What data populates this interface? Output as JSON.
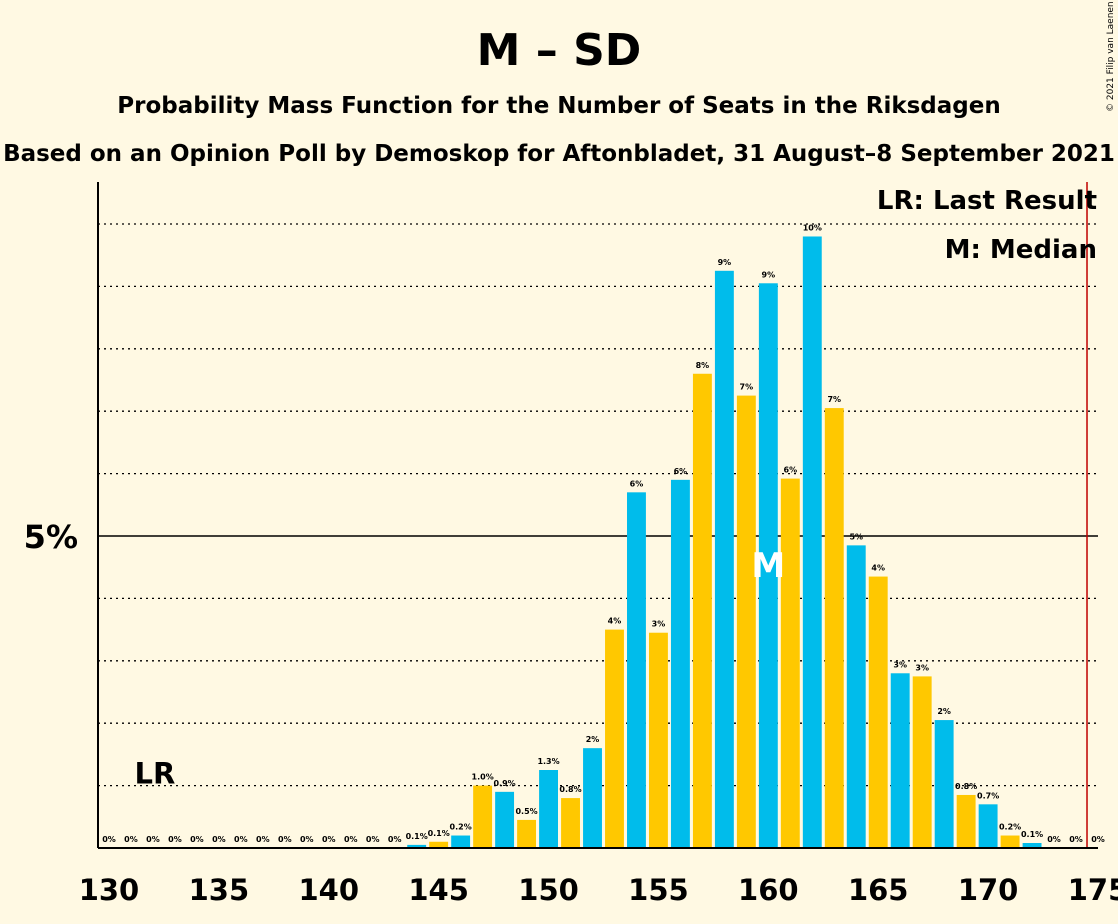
{
  "title": "M – SD",
  "subtitle": "Probability Mass Function for the Number of Seats in the Riksdagen",
  "subtitle2": "Based on an Opinion Poll by Demoskop for Aftonbladet, 31 August–8 September 2021",
  "copyright": "© 2021 Filip van Laenen",
  "legend": {
    "lr": "LR: Last Result",
    "median": "M: Median"
  },
  "markers": {
    "lr_label": "LR",
    "median_label": "M"
  },
  "colors": {
    "blue": "#00BCEB",
    "yellow": "#FFC800",
    "majority_line": "#C00000",
    "background": "#FFF9E3"
  },
  "chart_data": {
    "type": "bar",
    "xlim": [
      130,
      175
    ],
    "ylim": [
      0,
      10.5
    ],
    "x_ticks": [
      130,
      135,
      140,
      145,
      150,
      155,
      160,
      165,
      170,
      175
    ],
    "y_ticks": [
      {
        "value": 5,
        "label": "5%"
      }
    ],
    "grid": "dotted horizontal lines every 1%",
    "last_result": 132,
    "median": 160,
    "majority_line": 175,
    "x": [
      130,
      131,
      132,
      133,
      134,
      135,
      136,
      137,
      138,
      139,
      140,
      141,
      142,
      143,
      144,
      145,
      146,
      147,
      148,
      149,
      150,
      151,
      152,
      153,
      154,
      155,
      156,
      157,
      158,
      159,
      160,
      161,
      162,
      163,
      164,
      165,
      166,
      167,
      168,
      169,
      170,
      171,
      172,
      173,
      174,
      175
    ],
    "values": [
      0,
      0,
      0,
      0,
      0,
      0,
      0,
      0,
      0,
      0,
      0,
      0,
      0,
      0,
      0.05,
      0.1,
      0.2,
      1.0,
      0.9,
      0.45,
      1.25,
      0.8,
      1.6,
      3.5,
      5.7,
      3.45,
      5.9,
      7.6,
      9.25,
      7.25,
      9.05,
      5.92,
      9.8,
      7.05,
      4.85,
      4.35,
      2.8,
      2.75,
      2.05,
      0.85,
      0.7,
      0.2,
      0.08,
      0,
      0,
      0
    ],
    "data_labels": [
      "0%",
      "0%",
      "0%",
      "0%",
      "0%",
      "0%",
      "0%",
      "0%",
      "0%",
      "0%",
      "0%",
      "0%",
      "0%",
      "0%",
      "0.1%",
      "0.1%",
      "0.2%",
      "1.0%",
      "0.9%",
      "0.5%",
      "1.3%",
      "0.8%",
      "2%",
      "4%",
      "6%",
      "3%",
      "6%",
      "8%",
      "9%",
      "7%",
      "9%",
      "6%",
      "10%",
      "7%",
      "5%",
      "4%",
      "3%",
      "3%",
      "2%",
      "0.8%",
      "0.7%",
      "0.2%",
      "0.1%",
      "0%",
      "0%",
      "0%"
    ]
  }
}
